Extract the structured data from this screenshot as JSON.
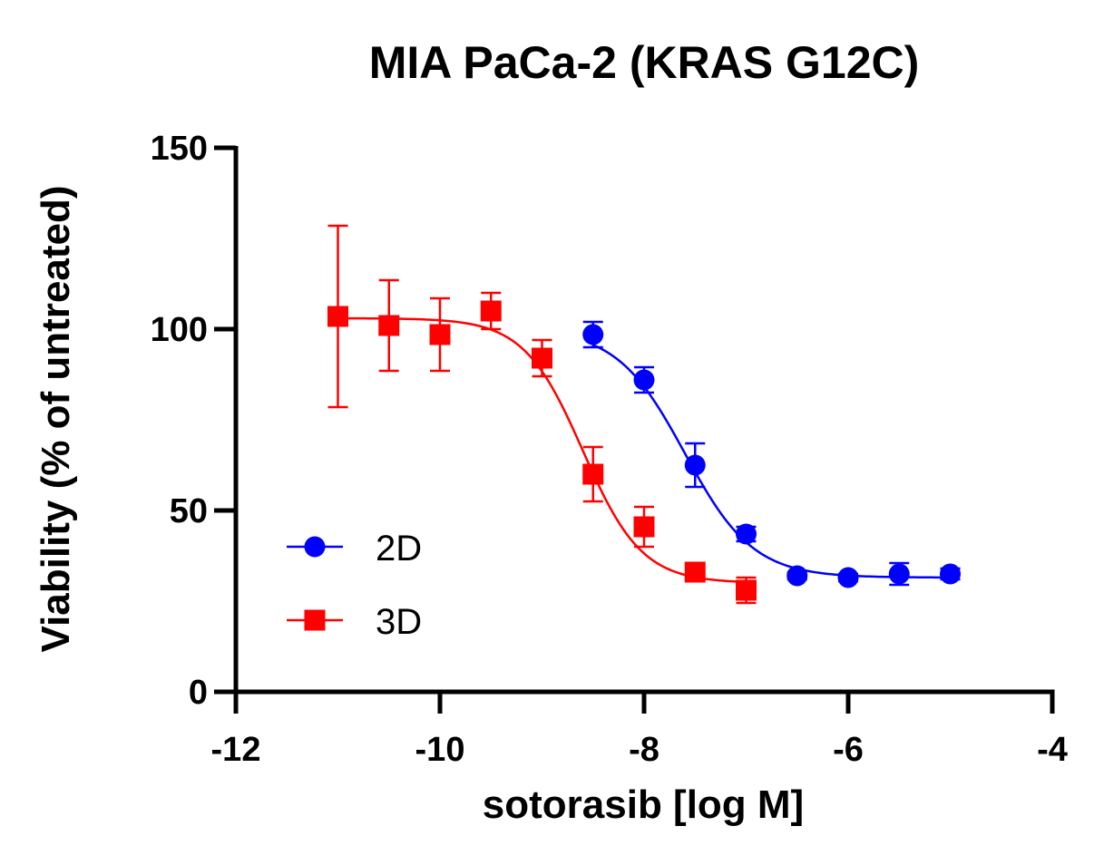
{
  "chart_data": {
    "type": "scatter",
    "title": "MIA PaCa-2 (KRAS G12C)",
    "xlabel": "sotorasib [log M]",
    "ylabel": "Viability (% of untreated)",
    "xlim": [
      -12,
      -4
    ],
    "ylim": [
      0,
      150
    ],
    "x_ticks": [
      "-12",
      "-10",
      "-8",
      "-6",
      "-4"
    ],
    "y_ticks": [
      "0",
      "50",
      "100",
      "150"
    ],
    "grid": false,
    "legend_position": "bottom-left",
    "series": [
      {
        "name": "2D",
        "color": "#0000ff",
        "marker": "circle",
        "x": [
          -8.5,
          -8.0,
          -7.5,
          -7.0,
          -6.5,
          -6.0,
          -5.5,
          -5.0
        ],
        "y": [
          98.5,
          86,
          62.5,
          43.5,
          32,
          31.5,
          32.5,
          32.5
        ],
        "error": [
          3.5,
          3.5,
          6,
          2,
          1,
          1,
          3,
          1.5
        ],
        "fit": {
          "top": 100,
          "bottom": 31.5,
          "log_ec50": -7.6,
          "hill": 1.3
        }
      },
      {
        "name": "3D",
        "color": "#ff0000",
        "marker": "square",
        "x": [
          -11.0,
          -10.5,
          -10.0,
          -9.5,
          -9.0,
          -8.5,
          -8.0,
          -7.5,
          -7.0
        ],
        "y": [
          103.5,
          101,
          98.5,
          105,
          92,
          60,
          45.5,
          33,
          28
        ],
        "error": [
          25,
          12.5,
          10,
          5,
          5,
          7.5,
          5.5,
          1.5,
          3.5
        ],
        "fit": {
          "top": 103,
          "bottom": 30,
          "log_ec50": -8.6,
          "hill": 1.5
        }
      }
    ]
  }
}
